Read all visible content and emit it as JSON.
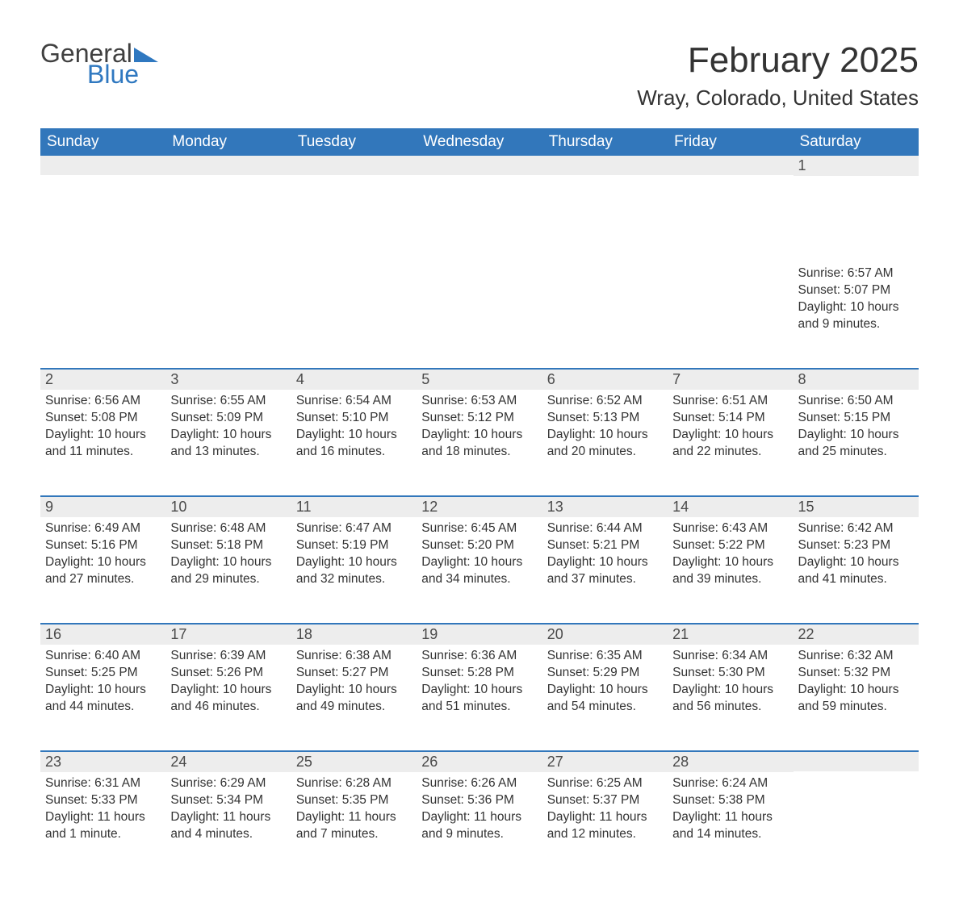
{
  "brand": {
    "word1": "General",
    "word2": "Blue",
    "word1_color": "#404040",
    "word2_color": "#2f78c0",
    "triangle_color": "#2f78c0"
  },
  "header": {
    "month_title": "February 2025",
    "location": "Wray, Colorado, United States"
  },
  "styling": {
    "header_bg": "#3277bb",
    "header_text_color": "#ffffff",
    "daynum_bg": "#ededed",
    "daynum_text_color": "#4a4a4a",
    "body_text_color": "#333333",
    "week_separator_color": "#3277bb",
    "background_color": "#ffffff",
    "day_header_fontsize": 19,
    "daynum_fontsize": 18,
    "body_fontsize": 15.5,
    "month_title_fontsize": 44,
    "location_fontsize": 26
  },
  "day_headers": [
    "Sunday",
    "Monday",
    "Tuesday",
    "Wednesday",
    "Thursday",
    "Friday",
    "Saturday"
  ],
  "weeks": [
    [
      {
        "day": "",
        "sunrise": "",
        "sunset": "",
        "daylight": ""
      },
      {
        "day": "",
        "sunrise": "",
        "sunset": "",
        "daylight": ""
      },
      {
        "day": "",
        "sunrise": "",
        "sunset": "",
        "daylight": ""
      },
      {
        "day": "",
        "sunrise": "",
        "sunset": "",
        "daylight": ""
      },
      {
        "day": "",
        "sunrise": "",
        "sunset": "",
        "daylight": ""
      },
      {
        "day": "",
        "sunrise": "",
        "sunset": "",
        "daylight": ""
      },
      {
        "day": "1",
        "sunrise": "Sunrise: 6:57 AM",
        "sunset": "Sunset: 5:07 PM",
        "daylight": "Daylight: 10 hours and 9 minutes."
      }
    ],
    [
      {
        "day": "2",
        "sunrise": "Sunrise: 6:56 AM",
        "sunset": "Sunset: 5:08 PM",
        "daylight": "Daylight: 10 hours and 11 minutes."
      },
      {
        "day": "3",
        "sunrise": "Sunrise: 6:55 AM",
        "sunset": "Sunset: 5:09 PM",
        "daylight": "Daylight: 10 hours and 13 minutes."
      },
      {
        "day": "4",
        "sunrise": "Sunrise: 6:54 AM",
        "sunset": "Sunset: 5:10 PM",
        "daylight": "Daylight: 10 hours and 16 minutes."
      },
      {
        "day": "5",
        "sunrise": "Sunrise: 6:53 AM",
        "sunset": "Sunset: 5:12 PM",
        "daylight": "Daylight: 10 hours and 18 minutes."
      },
      {
        "day": "6",
        "sunrise": "Sunrise: 6:52 AM",
        "sunset": "Sunset: 5:13 PM",
        "daylight": "Daylight: 10 hours and 20 minutes."
      },
      {
        "day": "7",
        "sunrise": "Sunrise: 6:51 AM",
        "sunset": "Sunset: 5:14 PM",
        "daylight": "Daylight: 10 hours and 22 minutes."
      },
      {
        "day": "8",
        "sunrise": "Sunrise: 6:50 AM",
        "sunset": "Sunset: 5:15 PM",
        "daylight": "Daylight: 10 hours and 25 minutes."
      }
    ],
    [
      {
        "day": "9",
        "sunrise": "Sunrise: 6:49 AM",
        "sunset": "Sunset: 5:16 PM",
        "daylight": "Daylight: 10 hours and 27 minutes."
      },
      {
        "day": "10",
        "sunrise": "Sunrise: 6:48 AM",
        "sunset": "Sunset: 5:18 PM",
        "daylight": "Daylight: 10 hours and 29 minutes."
      },
      {
        "day": "11",
        "sunrise": "Sunrise: 6:47 AM",
        "sunset": "Sunset: 5:19 PM",
        "daylight": "Daylight: 10 hours and 32 minutes."
      },
      {
        "day": "12",
        "sunrise": "Sunrise: 6:45 AM",
        "sunset": "Sunset: 5:20 PM",
        "daylight": "Daylight: 10 hours and 34 minutes."
      },
      {
        "day": "13",
        "sunrise": "Sunrise: 6:44 AM",
        "sunset": "Sunset: 5:21 PM",
        "daylight": "Daylight: 10 hours and 37 minutes."
      },
      {
        "day": "14",
        "sunrise": "Sunrise: 6:43 AM",
        "sunset": "Sunset: 5:22 PM",
        "daylight": "Daylight: 10 hours and 39 minutes."
      },
      {
        "day": "15",
        "sunrise": "Sunrise: 6:42 AM",
        "sunset": "Sunset: 5:23 PM",
        "daylight": "Daylight: 10 hours and 41 minutes."
      }
    ],
    [
      {
        "day": "16",
        "sunrise": "Sunrise: 6:40 AM",
        "sunset": "Sunset: 5:25 PM",
        "daylight": "Daylight: 10 hours and 44 minutes."
      },
      {
        "day": "17",
        "sunrise": "Sunrise: 6:39 AM",
        "sunset": "Sunset: 5:26 PM",
        "daylight": "Daylight: 10 hours and 46 minutes."
      },
      {
        "day": "18",
        "sunrise": "Sunrise: 6:38 AM",
        "sunset": "Sunset: 5:27 PM",
        "daylight": "Daylight: 10 hours and 49 minutes."
      },
      {
        "day": "19",
        "sunrise": "Sunrise: 6:36 AM",
        "sunset": "Sunset: 5:28 PM",
        "daylight": "Daylight: 10 hours and 51 minutes."
      },
      {
        "day": "20",
        "sunrise": "Sunrise: 6:35 AM",
        "sunset": "Sunset: 5:29 PM",
        "daylight": "Daylight: 10 hours and 54 minutes."
      },
      {
        "day": "21",
        "sunrise": "Sunrise: 6:34 AM",
        "sunset": "Sunset: 5:30 PM",
        "daylight": "Daylight: 10 hours and 56 minutes."
      },
      {
        "day": "22",
        "sunrise": "Sunrise: 6:32 AM",
        "sunset": "Sunset: 5:32 PM",
        "daylight": "Daylight: 10 hours and 59 minutes."
      }
    ],
    [
      {
        "day": "23",
        "sunrise": "Sunrise: 6:31 AM",
        "sunset": "Sunset: 5:33 PM",
        "daylight": "Daylight: 11 hours and 1 minute."
      },
      {
        "day": "24",
        "sunrise": "Sunrise: 6:29 AM",
        "sunset": "Sunset: 5:34 PM",
        "daylight": "Daylight: 11 hours and 4 minutes."
      },
      {
        "day": "25",
        "sunrise": "Sunrise: 6:28 AM",
        "sunset": "Sunset: 5:35 PM",
        "daylight": "Daylight: 11 hours and 7 minutes."
      },
      {
        "day": "26",
        "sunrise": "Sunrise: 6:26 AM",
        "sunset": "Sunset: 5:36 PM",
        "daylight": "Daylight: 11 hours and 9 minutes."
      },
      {
        "day": "27",
        "sunrise": "Sunrise: 6:25 AM",
        "sunset": "Sunset: 5:37 PM",
        "daylight": "Daylight: 11 hours and 12 minutes."
      },
      {
        "day": "28",
        "sunrise": "Sunrise: 6:24 AM",
        "sunset": "Sunset: 5:38 PM",
        "daylight": "Daylight: 11 hours and 14 minutes."
      },
      {
        "day": "",
        "sunrise": "",
        "sunset": "",
        "daylight": ""
      }
    ]
  ]
}
